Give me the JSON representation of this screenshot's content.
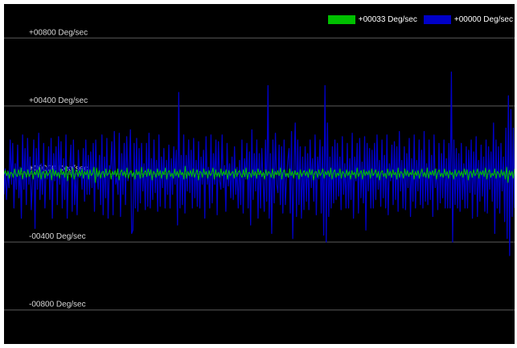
{
  "chart_data": {
    "type": "line",
    "background": "#000000",
    "grid": "horizontal",
    "legend_position": "top-right",
    "ylim": [
      -1000,
      1000
    ],
    "y_ticks": [
      {
        "value": 800,
        "label": "+00800 Deg/sec"
      },
      {
        "value": 400,
        "label": "+00400 Deg/sec"
      },
      {
        "value": 0,
        "label": "+00000 Deg/sec"
      },
      {
        "value": -400,
        "label": "-00400 Deg/sec"
      },
      {
        "value": -800,
        "label": "-00800 Deg/sec"
      }
    ],
    "series": [
      {
        "legend_label": "+00000 Deg/sec",
        "color": "#0000c8",
        "values": [
          -120,
          30,
          -150,
          20,
          -80,
          200,
          -60,
          180,
          -200,
          60,
          -90,
          170,
          -140,
          40,
          -260,
          230,
          -90,
          150,
          -180,
          210,
          -60,
          100,
          -210,
          -40,
          200,
          -320,
          150,
          -90,
          240,
          -150,
          60,
          -120,
          180,
          -200,
          40,
          -30,
          160,
          -150,
          210,
          -260,
          120,
          -40,
          160,
          -180,
          220,
          -60,
          190,
          -200,
          90,
          -150,
          230,
          -260,
          40,
          30,
          170,
          -220,
          200,
          -180,
          20,
          -240,
          140,
          -20,
          40,
          -90,
          150,
          -160,
          200,
          -120,
          110,
          -120,
          130,
          -80,
          180,
          -220,
          200,
          -20,
          -90,
          110,
          -180,
          230,
          -240,
          100,
          -140,
          210,
          -260,
          50,
          30,
          190,
          -240,
          250,
          -60,
          -20,
          -120,
          240,
          -250,
          120,
          -120,
          180,
          -180,
          220,
          -40,
          20,
          260,
          -350,
          -330,
          180,
          -200,
          210,
          -220,
          150,
          -170,
          180,
          -100,
          60,
          -210,
          180,
          -190,
          240,
          -200,
          90,
          -150,
          200,
          -110,
          80,
          -220,
          230,
          -190,
          100,
          -80,
          150,
          -200,
          80,
          -120,
          170,
          -200,
          90,
          -120,
          160,
          -60,
          140,
          -300,
          480,
          -200,
          110,
          -180,
          230,
          -230,
          110,
          -100,
          200,
          -110,
          140,
          -200,
          210,
          -140,
          80,
          -190,
          190,
          -200,
          100,
          -60,
          140,
          -260,
          220,
          -60,
          40,
          -200,
          230,
          -170,
          120,
          -60,
          200,
          -240,
          190,
          -40,
          -90,
          230,
          -80,
          50,
          -220,
          180,
          -70,
          60,
          -140,
          100,
          -150,
          160,
          -120,
          40,
          -200,
          80,
          -180,
          200,
          -230,
          90,
          -30,
          180,
          -200,
          130,
          -300,
          260,
          -150,
          120,
          -100,
          200,
          -260,
          120,
          -200,
          150,
          -30,
          -220,
          200,
          -160,
          520,
          -260,
          120,
          -350,
          200,
          -170,
          240,
          -60,
          -110,
          170,
          -180,
          160,
          -230,
          200,
          -180,
          -20,
          80,
          150,
          -230,
          250,
          -380,
          40,
          300,
          -250,
          200,
          -180,
          160,
          -260,
          100,
          -210,
          160,
          -160,
          120,
          -210,
          200,
          -80,
          90,
          -160,
          230,
          -240,
          100,
          -30,
          200,
          -230,
          160,
          -360,
          520,
          -400,
          300,
          -250,
          100,
          -200,
          160,
          -170,
          200,
          -150,
          180,
          -130,
          100,
          -210,
          220,
          -120,
          60,
          -200,
          180,
          -200,
          90,
          -150,
          240,
          -260,
          100,
          -40,
          180,
          -230,
          210,
          -140,
          70,
          -170,
          220,
          -330,
          180,
          -100,
          150,
          -200,
          140,
          -200,
          180,
          -150,
          230,
          -90,
          80,
          -190,
          200,
          -140,
          110,
          -200,
          230,
          -240,
          60,
          -40,
          170,
          -180,
          190,
          -150,
          160,
          -220,
          250,
          -100,
          80,
          -200,
          160,
          -210,
          120,
          -80,
          210,
          -250,
          90,
          -160,
          230,
          -200,
          80,
          -100,
          200,
          -180,
          140,
          -200,
          250,
          -160,
          60,
          -180,
          200,
          -150,
          110,
          -250,
          230,
          -80,
          30,
          -210,
          180,
          -170,
          120,
          -140,
          200,
          -200,
          90,
          -200,
          180,
          -200,
          600,
          -400,
          200,
          -180,
          150,
          -200,
          120,
          -220,
          180,
          -150,
          60,
          -200,
          160,
          -200,
          140,
          -110,
          200,
          -260,
          130,
          -120,
          220,
          -250,
          80,
          -160,
          170,
          -130,
          100,
          -220,
          200,
          -230,
          160,
          -90,
          130,
          -160,
          300,
          -350,
          200,
          -200,
          160,
          -230,
          180,
          -100,
          100,
          -280,
          270,
          -380,
          460,
          -480,
          380,
          -250,
          270,
          -200
        ]
      },
      {
        "legend_label": "+00033 Deg/sec",
        "color": "#00c000",
        "values": [
          0,
          20,
          -10,
          15,
          -25,
          10,
          5,
          -20,
          30,
          -5,
          -15,
          25,
          -10,
          35,
          -30,
          15,
          10,
          -20,
          25,
          -15,
          5,
          20,
          -30,
          15,
          -5,
          25,
          -20,
          40,
          -30,
          10,
          15,
          -25,
          20,
          -10,
          5,
          25,
          -35,
          30,
          -10,
          20,
          -15,
          10,
          -25,
          30,
          -5,
          15,
          -20,
          45,
          -40,
          15,
          10,
          -20,
          35,
          -30,
          5,
          25,
          -15,
          20,
          -10,
          30,
          -25,
          15,
          -5,
          20,
          -30,
          25,
          -10,
          5,
          40,
          -50,
          35,
          -15,
          20,
          -25,
          10,
          15,
          -20,
          30,
          -10,
          5,
          25,
          -30,
          15,
          -5,
          20,
          -15,
          30,
          -35,
          10,
          25,
          -10,
          15,
          -20,
          35,
          -25,
          5,
          20,
          -15,
          10,
          -30,
          25,
          -5,
          15,
          -25,
          40,
          -20,
          5,
          20,
          -15,
          30,
          -10,
          25,
          -35,
          15,
          5,
          -20,
          30,
          -10,
          20,
          -25,
          15,
          -5,
          35,
          -30,
          10,
          20,
          -15,
          5,
          -25,
          30,
          -10,
          15,
          -20,
          25,
          -5,
          10,
          -30,
          45,
          -25,
          15,
          -10,
          20,
          -15,
          30,
          -20,
          5,
          25,
          -35,
          15,
          10,
          -20,
          30,
          -5,
          15,
          -25,
          20,
          -10,
          5,
          35,
          -30,
          25,
          -15,
          10,
          -20,
          30,
          -10,
          15,
          -5,
          25,
          -30,
          20,
          -10,
          5,
          15,
          -25,
          30,
          -15,
          10,
          20,
          -5,
          -20,
          25,
          -15,
          35,
          -30,
          10,
          5,
          -20,
          25,
          -10,
          15,
          -25,
          30,
          -5,
          20,
          -15,
          10,
          -30,
          25,
          -10,
          15,
          5,
          -20,
          30,
          -25,
          15,
          -5,
          20,
          -10,
          35,
          -30,
          10,
          25,
          -15,
          5,
          -20,
          30,
          -10,
          15,
          -25,
          20,
          -5,
          10,
          -30,
          25,
          -15,
          5,
          20,
          -10,
          15,
          -20,
          30,
          -5,
          25,
          -35,
          10,
          15,
          -20,
          25,
          -10,
          5,
          30,
          -25,
          15,
          -5,
          20,
          -15,
          35,
          -30,
          10,
          25,
          -20,
          5,
          -10,
          30,
          -25,
          15,
          5,
          -20,
          25,
          -10,
          15,
          -30,
          20,
          -5,
          10,
          -25,
          35,
          -15,
          5,
          20,
          -30,
          25,
          -10,
          15,
          -5,
          20,
          -25,
          30,
          -10,
          5,
          25,
          -20,
          15,
          -35,
          10,
          20,
          -15,
          5,
          -25,
          30,
          -10,
          15,
          -20,
          25,
          -5,
          10,
          -30,
          35,
          -20,
          15,
          5,
          -25,
          30,
          -10,
          20,
          -15,
          10,
          -5,
          25,
          -30,
          15,
          -10,
          20,
          -25,
          5,
          30,
          -15,
          10,
          -20,
          35,
          -25,
          15,
          -5,
          20,
          -10,
          30,
          -30,
          10,
          25,
          -15,
          5,
          -20,
          30,
          -10,
          15,
          -25,
          20,
          -5,
          10,
          -30,
          25,
          -15,
          5,
          20,
          -10,
          15,
          -20,
          30,
          -5,
          25,
          -35,
          10,
          15,
          -20,
          25,
          -10,
          5,
          30,
          -25,
          15,
          -5,
          20,
          -15,
          35,
          -30,
          10,
          25,
          -20,
          5,
          -10,
          30,
          -25,
          15,
          5,
          -20,
          25,
          -10,
          15,
          -30,
          40,
          -50,
          20,
          -10,
          15,
          -25,
          30
        ]
      }
    ]
  }
}
